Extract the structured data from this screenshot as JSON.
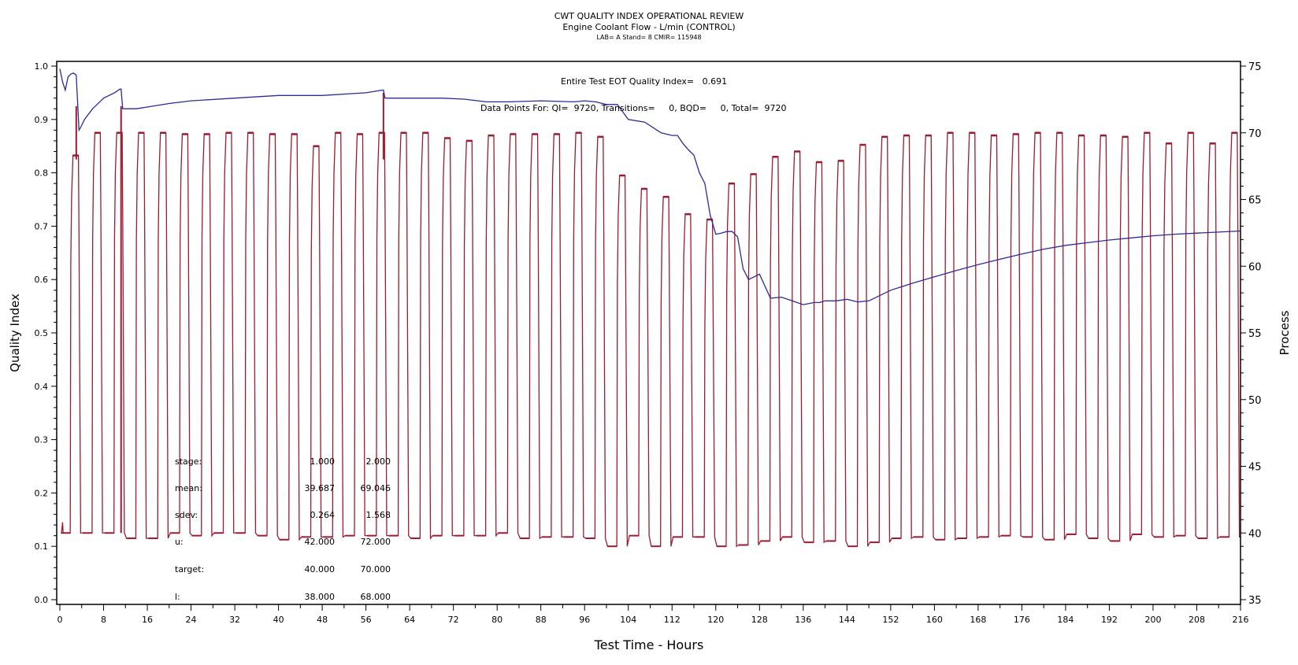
{
  "header": {
    "title": "CWT QUALITY INDEX OPERATIONAL REVIEW",
    "subtitle": "Engine Coolant Flow - L/min (CONTROL)",
    "info": "LAB= A Stand= 8 CMIR= 115948"
  },
  "annotations": {
    "eot_quality": "Entire Test EOT Quality Index=   0.691",
    "data_points": "Data Points For: QI=  9720, Transitions=     0, BQD=     0, Total=  9720"
  },
  "stats_table": {
    "rows": [
      {
        "label": "stage:",
        "v1": "1.000",
        "v2": "2.000"
      },
      {
        "label": "mean:",
        "v1": "39.687",
        "v2": "69.046"
      },
      {
        "label": "sdev:",
        "v1": "0.264",
        "v2": "1.568"
      },
      {
        "label": "u:",
        "v1": "42.000",
        "v2": "72.000"
      },
      {
        "label": "target:",
        "v1": "40.000",
        "v2": "70.000"
      },
      {
        "label": "l:",
        "v1": "38.000",
        "v2": "68.000"
      }
    ]
  },
  "chart_data": {
    "type": "line",
    "title": "CWT QUALITY INDEX OPERATIONAL REVIEW",
    "xlabel": "Test Time - Hours",
    "ylabel": "Quality Index",
    "y2label": "Process",
    "xlim": [
      0,
      216
    ],
    "ylim": [
      0.0,
      1.0
    ],
    "y2lim": [
      35,
      75
    ],
    "xticks": [
      "0",
      "8",
      "16",
      "24",
      "32",
      "40",
      "48",
      "56",
      "64",
      "72",
      "80",
      "88",
      "96",
      "104",
      "112",
      "120",
      "128",
      "136",
      "144",
      "152",
      "160",
      "168",
      "176",
      "184",
      "192",
      "200",
      "208",
      "216"
    ],
    "yticks": [
      "0.0",
      "0.1",
      "0.2",
      "0.3",
      "0.4",
      "0.5",
      "0.6",
      "0.7",
      "0.8",
      "0.9",
      "1.0"
    ],
    "y2ticks": [
      "35",
      "40",
      "45",
      "50",
      "55",
      "60",
      "65",
      "70",
      "75"
    ],
    "grid": false,
    "colors": {
      "quality": "#2b2b9a",
      "process": "#9b1b30",
      "axis": "#000000"
    },
    "series": [
      {
        "name": "Quality Index",
        "axis": "left",
        "x": [
          0,
          0.5,
          1,
          1.5,
          2,
          2.5,
          3,
          3.5,
          3.8,
          4.5,
          6,
          8,
          10,
          11,
          11.2,
          11.5,
          14,
          17,
          20,
          24,
          32,
          40,
          48,
          56,
          59,
          59.2,
          59.5,
          64,
          70,
          74,
          78,
          82,
          88,
          94,
          96,
          98,
          100,
          102,
          104,
          107,
          110,
          112,
          113,
          114,
          115,
          116,
          117,
          118,
          119,
          120,
          121,
          122,
          123,
          124,
          125,
          126,
          127,
          128,
          130,
          132,
          134,
          136,
          137,
          138,
          139,
          140,
          142,
          144,
          146,
          148,
          152,
          156,
          160,
          164,
          168,
          172,
          176,
          180,
          184,
          188,
          192,
          196,
          200,
          204,
          208,
          212,
          216
        ],
        "y": [
          0.995,
          0.97,
          0.955,
          0.98,
          0.985,
          0.987,
          0.983,
          0.88,
          0.885,
          0.9,
          0.92,
          0.94,
          0.95,
          0.957,
          0.957,
          0.92,
          0.92,
          0.925,
          0.93,
          0.935,
          0.94,
          0.945,
          0.945,
          0.95,
          0.955,
          0.955,
          0.94,
          0.94,
          0.94,
          0.938,
          0.933,
          0.933,
          0.935,
          0.933,
          0.935,
          0.933,
          0.928,
          0.928,
          0.9,
          0.895,
          0.875,
          0.87,
          0.87,
          0.855,
          0.843,
          0.833,
          0.8,
          0.78,
          0.72,
          0.685,
          0.687,
          0.69,
          0.69,
          0.68,
          0.62,
          0.6,
          0.605,
          0.61,
          0.565,
          0.567,
          0.56,
          0.553,
          0.555,
          0.557,
          0.557,
          0.56,
          0.56,
          0.563,
          0.558,
          0.56,
          0.58,
          0.593,
          0.605,
          0.617,
          0.628,
          0.638,
          0.648,
          0.657,
          0.664,
          0.669,
          0.674,
          0.678,
          0.682,
          0.685,
          0.687,
          0.689,
          0.691
        ]
      },
      {
        "name": "Process (L/min)",
        "axis": "right",
        "cycle_hours": 4,
        "cycle_start": [
          2,
          6,
          10,
          14,
          18,
          22,
          26,
          30,
          34,
          38,
          42,
          46,
          50,
          54,
          58,
          62,
          66,
          70,
          74,
          78,
          82,
          86,
          90,
          94,
          98,
          102,
          106,
          110,
          114,
          118,
          122,
          126,
          130,
          134,
          138,
          142,
          146,
          150,
          154,
          158,
          162,
          166,
          170,
          174,
          178,
          182,
          186,
          190,
          194,
          198,
          202,
          206,
          210,
          214
        ],
        "peaks": [
          68.3,
          70.0,
          70.0,
          70.0,
          70.0,
          69.9,
          69.9,
          70.0,
          70.0,
          69.9,
          69.9,
          69.0,
          70.0,
          69.9,
          70.0,
          70.0,
          70.0,
          69.6,
          69.4,
          69.8,
          69.9,
          69.9,
          69.9,
          70.0,
          69.7,
          66.8,
          65.8,
          65.2,
          63.9,
          63.5,
          66.2,
          66.9,
          68.2,
          68.6,
          67.8,
          67.9,
          69.1,
          69.7,
          69.8,
          69.8,
          70.0,
          70.0,
          69.8,
          69.9,
          70.0,
          70.0,
          69.8,
          69.8,
          69.7,
          70.0,
          69.2,
          70.0,
          69.2,
          70.0
        ],
        "lows": [
          40.0,
          40.0,
          40.0,
          39.6,
          39.6,
          40.0,
          39.8,
          40.0,
          40.0,
          39.8,
          39.5,
          39.7,
          39.7,
          39.8,
          39.8,
          39.8,
          39.6,
          39.8,
          39.8,
          39.8,
          40.0,
          39.6,
          39.7,
          39.7,
          39.6,
          39.0,
          39.8,
          39.0,
          39.7,
          39.7,
          39.0,
          39.1,
          39.4,
          39.7,
          39.3,
          39.4,
          39.0,
          39.3,
          39.6,
          39.7,
          39.5,
          39.6,
          39.7,
          39.8,
          39.7,
          39.5,
          39.9,
          39.6,
          39.4,
          39.9,
          39.7,
          39.8,
          39.6,
          39.7
        ]
      }
    ]
  }
}
